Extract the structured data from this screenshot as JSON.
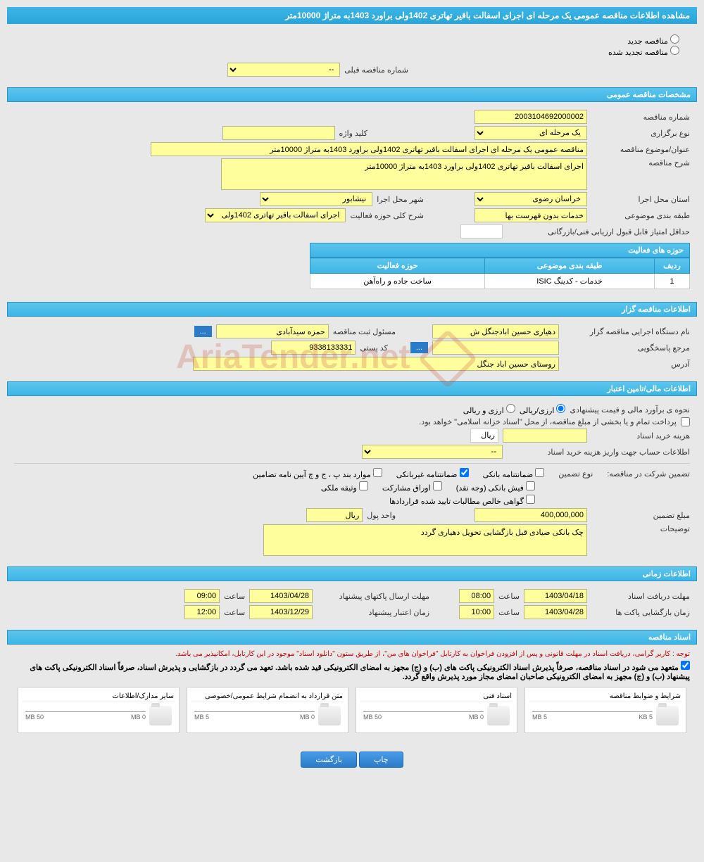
{
  "header": {
    "title": "مشاهده اطلاعات مناقصه عمومی یک مرحله ای اجرای اسفالت باقیر تهاتری 1402ولی براورد 1403به متراژ 10000متر"
  },
  "tender_type": {
    "new_label": "مناقصه جدید",
    "renewed_label": "مناقصه تجدید شده",
    "prev_number_label": "شماره مناقصه قبلی",
    "prev_number_value": "--"
  },
  "sections": {
    "general": "مشخصات مناقصه عمومی",
    "organizer": "اطلاعات مناقصه گزار",
    "financial": "اطلاعات مالی/تامین اعتبار",
    "timing": "اطلاعات زمانی",
    "documents": "اسناد مناقصه"
  },
  "general": {
    "number_label": "شماره مناقصه",
    "number_value": "2003104692000002",
    "type_label": "نوع برگزاری",
    "type_value": "یک مرحله ای",
    "keyword_label": "کلید واژه",
    "keyword_value": "",
    "title_label": "عنوان/موضوع مناقصه",
    "title_value": "مناقصه عمومی یک مرحله ای اجرای اسفالت باقیر تهاتری 1402ولی براورد 1403به متراژ 10000متر",
    "desc_label": "شرح مناقصه",
    "desc_value": "اجرای اسفالت باقیر تهاتری 1402ولی براورد 1403به متراژ 10000متر",
    "province_label": "استان محل اجرا",
    "province_value": "خراسان رضوی",
    "city_label": "شهر محل اجرا",
    "city_value": "نیشابور",
    "category_label": "طبقه بندی موضوعی",
    "category_value": "خدمات بدون فهرست بها",
    "activity_desc_label": "شرح کلی حوزه فعالیت",
    "activity_desc_value": "اجرای اسفالت باقیر تهاتری 1402ولی براورد 1403به",
    "min_score_label": "حداقل امتیاز قابل قبول ارزیابی فنی/بازرگانی",
    "min_score_value": ""
  },
  "activity_table": {
    "title": "حوزه های فعالیت",
    "col_row": "ردیف",
    "col_category": "طبقه بندی موضوعی",
    "col_field": "حوزه فعالیت",
    "rows": [
      {
        "num": "1",
        "category": "خدمات - کدینگ ISIC",
        "field": "ساخت جاده و راه‌آهن"
      }
    ]
  },
  "organizer": {
    "name_label": "نام دستگاه اجرایی مناقصه گزار",
    "name_value": "دهیاری حسین ابادجنگل  ش",
    "responsible_label": "مسئول ثبت مناقصه",
    "responsible_value": "حمزه سیدآبادی",
    "contact_label": "مرجع پاسخگویی",
    "contact_value": "",
    "postal_label": "کد پستی",
    "postal_value": "9338133331",
    "address_label": "آدرس",
    "address_value": "روستای حسین اباد جنگل",
    "btn_dots": "..."
  },
  "financial": {
    "estimate_label": "نحوه ی برآورد مالی و قیمت پیشنهادی",
    "currency_opt1": "ارزی/ریالی",
    "currency_opt2": "ارزی و ریالی",
    "treasury_note": "پرداخت تمام و یا بخشی از مبلغ مناقصه، از محل \"اسناد خزانه اسلامی\" خواهد بود.",
    "doc_cost_label": "هزینه خرید اسناد",
    "doc_cost_value": "",
    "doc_cost_unit": "ریال",
    "account_label": "اطلاعات حساب جهت واریز هزینه خرید اسناد",
    "account_value": "--",
    "guarantee_label": "تضمین شرکت در مناقصه:",
    "guarantee_type_label": "نوع تضمین",
    "chk_bank": "ضمانتنامه بانکی",
    "chk_nonbank": "ضمانتنامه غیربانکی",
    "chk_items": "موارد بند پ ، ج و چ آیین نامه تضامین",
    "chk_cash": "فیش بانکی (وجه نقد)",
    "chk_bonds": "اوراق مشارکت",
    "chk_property": "وثیقه ملکی",
    "chk_cert": "گواهی خالص مطالبات تایید شده قراردادها",
    "amount_label": "مبلغ تضمین",
    "amount_value": "400,000,000",
    "unit_label": "واحد پول",
    "unit_value": "ریال",
    "notes_label": "توضیحات",
    "notes_value": "چک بانکی صیادی قبل بازگشایی تحویل دهیاری گردد"
  },
  "timing": {
    "receive_label": "مهلت دریافت اسناد",
    "receive_date": "1403/04/18",
    "receive_time_label": "ساعت",
    "receive_time": "08:00",
    "send_label": "مهلت ارسال پاکتهای پیشنهاد",
    "send_date": "1403/04/28",
    "send_time": "09:00",
    "open_label": "زمان بازگشایی پاکت ها",
    "open_date": "1403/04/28",
    "open_time": "10:00",
    "validity_label": "زمان اعتبار پیشنهاد",
    "validity_date": "1403/12/29",
    "validity_time": "12:00"
  },
  "documents": {
    "note1": "توجه : کاربر گرامی، دریافت اسناد در مهلت قانونی و پس از افزودن فراخوان به کارتابل \"فراخوان های من\"، از طریق ستون \"دانلود اسناد\" موجود در این کارتابل، امکانپذیر می باشد.",
    "note2": "متعهد می شود در اسناد مناقصه، صرفاً پذیرش اسناد الکترونیکی پاکت های (ب) و (ج) مجهز به امضای الکترونیکی قید شده باشد. تعهد می گردد در بازگشایی و پذیرش اسناد، صرفاً اسناد الکترونیکی پاکت های پیشنهاد (ب) و (ج) مجهز به امضای الکترونیکی صاحبان امضای مجاز مورد پذیرش واقع گردد.",
    "files": [
      {
        "title": "شرایط و ضوابط مناقصه",
        "used": "5 KB",
        "max": "5 MB"
      },
      {
        "title": "اسناد فنی",
        "used": "0 MB",
        "max": "50 MB"
      },
      {
        "title": "متن قرارداد به انضمام شرایط عمومی/خصوصی",
        "used": "0 MB",
        "max": "5 MB"
      },
      {
        "title": "سایر مدارک/اطلاعات",
        "used": "0 MB",
        "max": "50 MB"
      }
    ]
  },
  "buttons": {
    "print": "چاپ",
    "back": "بازگشت"
  },
  "watermark": "AriaTender.net"
}
